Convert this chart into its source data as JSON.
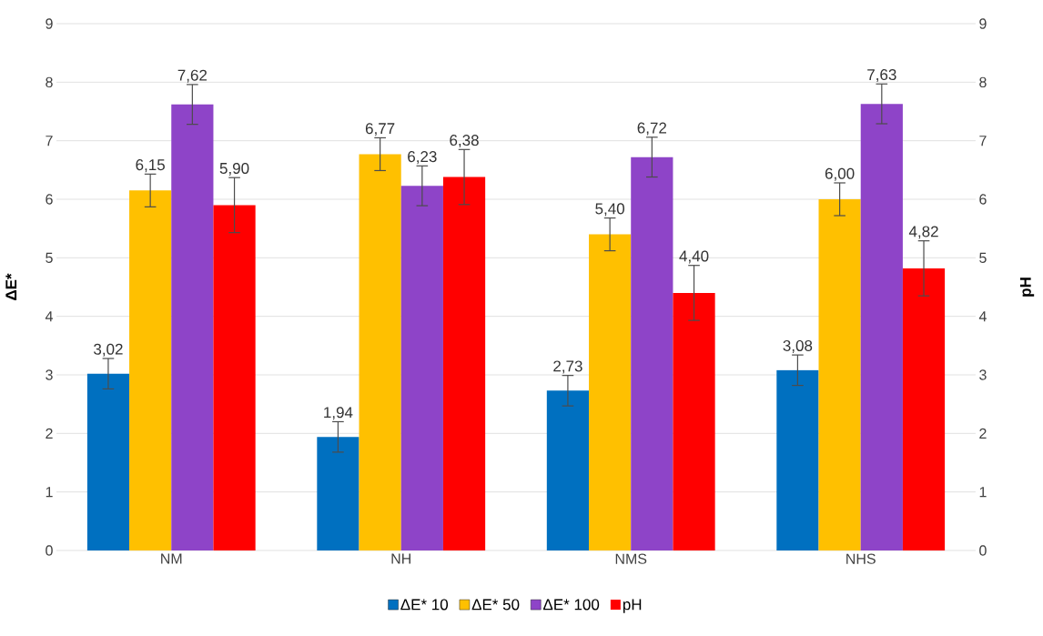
{
  "chart_data": {
    "type": "bar",
    "ylabel": "ΔE*",
    "y2label": "pH",
    "categories": [
      "NM",
      "NH",
      "NMS",
      "NHS"
    ],
    "series": [
      {
        "name": "ΔE* 10",
        "color": "#0070c0",
        "values": [
          3.02,
          1.94,
          2.73,
          3.08
        ],
        "errors": [
          0.26,
          0.26,
          0.26,
          0.26
        ],
        "value_labels": [
          "3,02",
          "1,94",
          "2,73",
          "3,08"
        ]
      },
      {
        "name": "ΔE* 50",
        "color": "#ffc000",
        "values": [
          6.15,
          6.77,
          5.4,
          6.0
        ],
        "errors": [
          0.28,
          0.28,
          0.28,
          0.28
        ],
        "value_labels": [
          "6,15",
          "6,77",
          "5,40",
          "6,00"
        ]
      },
      {
        "name": "ΔE* 100",
        "color": "#8e44c8",
        "values": [
          7.62,
          6.23,
          6.72,
          7.63
        ],
        "errors": [
          0.34,
          0.34,
          0.34,
          0.34
        ],
        "value_labels": [
          "7,62",
          "6,23",
          "6,72",
          "7,63"
        ]
      },
      {
        "name": "pH",
        "color": "#ff0000",
        "axis": "y2",
        "values": [
          5.9,
          6.38,
          4.4,
          4.82
        ],
        "errors": [
          0.47,
          0.47,
          0.47,
          0.47
        ],
        "value_labels": [
          "5,90",
          "6,38",
          "4,40",
          "4,82"
        ]
      }
    ],
    "ylim": [
      0,
      9
    ],
    "yticks": [
      0,
      1,
      2,
      3,
      4,
      5,
      6,
      7,
      8,
      9
    ],
    "y2lim": [
      0,
      9
    ],
    "y2ticks": [
      0,
      1,
      2,
      3,
      4,
      5,
      6,
      7,
      8,
      9
    ],
    "grid": "y",
    "legend": "bottom"
  }
}
